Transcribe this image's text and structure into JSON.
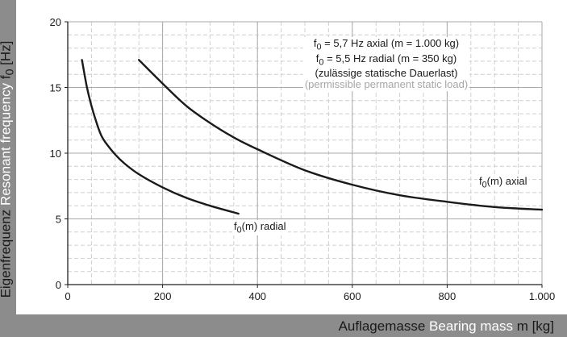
{
  "chart_data": {
    "type": "line",
    "xlabel": {
      "de": "Auflagemasse",
      "en": "Bearing mass",
      "sym": "m [kg]"
    },
    "ylabel": {
      "de": "Eigenfrequenz",
      "en": "Resonant frequency",
      "sym_main": "f",
      "sym_sub": "0",
      "unit": "[Hz]"
    },
    "xlim": [
      0,
      1000
    ],
    "ylim": [
      0,
      20
    ],
    "xticks": [
      {
        "value": 0,
        "label": "0"
      },
      {
        "value": 200,
        "label": "200"
      },
      {
        "value": 400,
        "label": "400"
      },
      {
        "value": 600,
        "label": "600"
      },
      {
        "value": 800,
        "label": "800"
      },
      {
        "value": 1000,
        "label": "1.000"
      }
    ],
    "yticks": [
      {
        "value": 0,
        "label": "0"
      },
      {
        "value": 5,
        "label": "5"
      },
      {
        "value": 10,
        "label": "10"
      },
      {
        "value": 15,
        "label": "15"
      },
      {
        "value": 20,
        "label": "20"
      }
    ],
    "minor_grid_x": 50,
    "minor_grid_y": 1,
    "series": [
      {
        "name": "radial",
        "x": [
          30,
          40,
          50,
          60,
          70,
          80,
          100,
          120,
          150,
          200,
          250,
          300,
          360
        ],
        "y": [
          17.1,
          15.1,
          13.6,
          12.4,
          11.4,
          10.8,
          9.9,
          9.2,
          8.4,
          7.4,
          6.6,
          6.0,
          5.4
        ]
      },
      {
        "name": "axial",
        "x": [
          150,
          200,
          250,
          300,
          350,
          400,
          500,
          600,
          700,
          800,
          900,
          1000
        ],
        "y": [
          17.1,
          15.3,
          13.6,
          12.3,
          11.2,
          10.3,
          8.7,
          7.6,
          6.8,
          6.3,
          5.9,
          5.7
        ]
      }
    ],
    "series_labels": [
      {
        "main": "f",
        "sub": "0",
        "rest": "(m) radial"
      },
      {
        "main": "f",
        "sub": "0",
        "rest": "(m) axial"
      }
    ],
    "annotation": {
      "line1": {
        "main": "f",
        "sub": "0",
        "rest": " = 5,7 Hz axial (m = 1.000 kg)"
      },
      "line2": {
        "main": "f",
        "sub": "0",
        "rest": " = 5,5 Hz radial (m = 350 kg)"
      },
      "line3": "(zulässige statische Dauerlast)",
      "line4": "(permissible permanent static load)"
    },
    "grid": true
  }
}
